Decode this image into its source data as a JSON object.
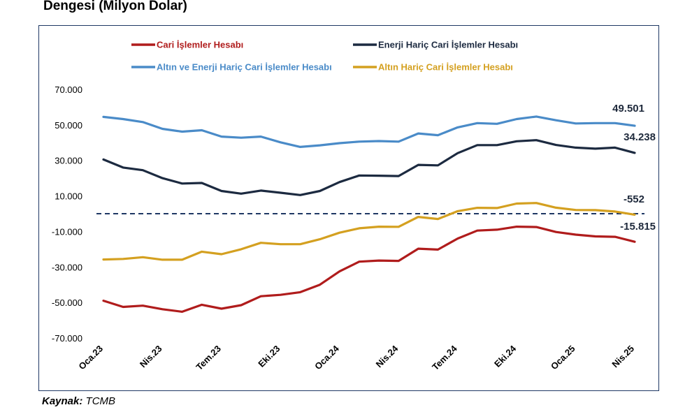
{
  "header": {
    "title": "Dengesi (Milyon Dolar)"
  },
  "footer": {
    "source_label": "Kaynak:",
    "source_value": "TCMB"
  },
  "chart_data": {
    "type": "line",
    "title": "Dengesi (Milyon Dolar)",
    "xlabel": "",
    "ylabel": "",
    "ylim": [
      -70000,
      70000
    ],
    "yticks": [
      70000,
      50000,
      30000,
      10000,
      -10000,
      -30000,
      -50000,
      -70000
    ],
    "ytick_labels": [
      "70.000",
      "50.000",
      "30.000",
      "10.000",
      "-10.000",
      "-30.000",
      "-50.000",
      "-70.000"
    ],
    "x": [
      "Oca.23",
      "Şub.23",
      "Mar.23",
      "Nis.23",
      "May.23",
      "Haz.23",
      "Tem.23",
      "Ağu.23",
      "Eyl.23",
      "Eki.23",
      "Kas.23",
      "Ara.23",
      "Oca.24",
      "Şub.24",
      "Mar.24",
      "Nis.24",
      "May.24",
      "Haz.24",
      "Tem.24",
      "Ağu.24",
      "Eyl.24",
      "Eki.24",
      "Kas.24",
      "Ara.24",
      "Oca.25",
      "Şub.25",
      "Mar.25",
      "Nis.25"
    ],
    "xtick_labels": [
      "Oca.23",
      "Nis.23",
      "Tem.23",
      "Eki.23",
      "Oca.24",
      "Nis.24",
      "Tem.24",
      "Eki.24",
      "Oca.25",
      "Nis.25"
    ],
    "xtick_indices": [
      0,
      3,
      6,
      9,
      12,
      15,
      18,
      21,
      24,
      27
    ],
    "zero_line": {
      "style": "dashed",
      "color": "#1f3864"
    },
    "legend_placement": "top",
    "series": [
      {
        "name": "Cari İşlemler Hesabı",
        "color": "#b01c1c",
        "values": [
          -49000,
          -52500,
          -51800,
          -53800,
          -55200,
          -51300,
          -53500,
          -51500,
          -46500,
          -45700,
          -44200,
          -40000,
          -32500,
          -27000,
          -26400,
          -26600,
          -19700,
          -20200,
          -14000,
          -9500,
          -9000,
          -7300,
          -7500,
          -10300,
          -11800,
          -12800,
          -13000,
          -15815
        ],
        "end_label": "-15.815"
      },
      {
        "name": "Enerji Hariç Cari İşlemler Hesabı",
        "color": "#1c2a40",
        "values": [
          30500,
          26000,
          24500,
          20000,
          17000,
          17300,
          12800,
          11300,
          13000,
          11800,
          10500,
          12800,
          17800,
          21500,
          21400,
          21200,
          27500,
          27200,
          34100,
          38600,
          38600,
          40800,
          41400,
          38700,
          37200,
          36600,
          37200,
          34238
        ],
        "end_label": "34.238"
      },
      {
        "name": "Altın ve Enerji Hariç Cari İşlemler Hesabı",
        "color": "#4a8bc8",
        "values": [
          54500,
          53300,
          51600,
          47800,
          46200,
          47000,
          43400,
          42800,
          43400,
          40200,
          37600,
          38500,
          39700,
          40600,
          40900,
          40600,
          45200,
          44200,
          48600,
          51000,
          50600,
          53300,
          54700,
          52600,
          50800,
          51000,
          51000,
          49501
        ],
        "end_label": "49.501"
      },
      {
        "name": "Altın Hariç Cari İşlemler Hesabı",
        "color": "#d4a020",
        "values": [
          -25800,
          -25500,
          -24500,
          -25900,
          -25900,
          -21400,
          -22800,
          -20000,
          -16400,
          -17200,
          -17200,
          -14400,
          -10700,
          -8200,
          -7300,
          -7400,
          -1800,
          -3000,
          1400,
          3300,
          3200,
          5700,
          6000,
          3400,
          2100,
          2000,
          1200,
          -552
        ],
        "end_label": "-552"
      }
    ]
  }
}
